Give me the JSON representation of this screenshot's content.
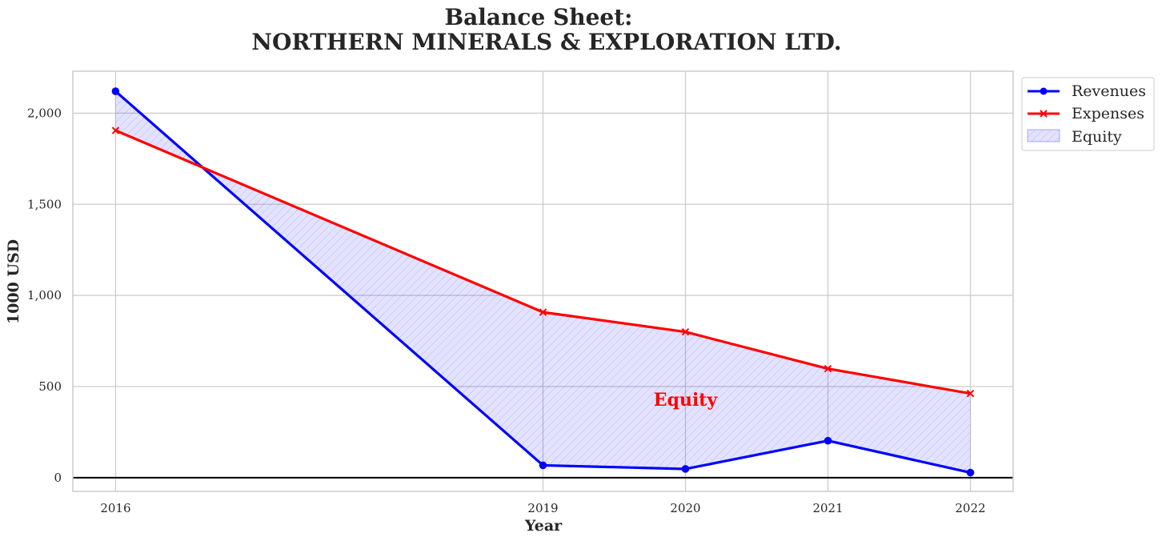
{
  "chart_data": {
    "type": "line",
    "title_lines": [
      "Balance Sheet:",
      "NORTHERN MINERALS & EXPLORATION LTD."
    ],
    "xlabel": "Year",
    "ylabel": "1000 USD",
    "x": [
      2016,
      2019,
      2020,
      2021,
      2022
    ],
    "x_tick_labels": [
      "2016",
      "2019",
      "2020",
      "2021",
      "2022"
    ],
    "xlim": [
      2015.7,
      2022.3
    ],
    "ylim": [
      -75,
      2230
    ],
    "y_ticks": [
      0,
      500,
      1000,
      1500,
      2000
    ],
    "y_tick_labels": [
      "0",
      "500",
      "1,000",
      "1,500",
      "2,000"
    ],
    "grid": true,
    "legend_position": "outside top-right",
    "series": [
      {
        "name": "Revenues",
        "values": [
          2120,
          68,
          48,
          203,
          28
        ],
        "color": "#0000ff",
        "marker": "circle"
      },
      {
        "name": "Expenses",
        "values": [
          1905,
          908,
          800,
          598,
          462
        ],
        "color": "#ff0000",
        "marker": "x"
      }
    ],
    "fill": {
      "name": "Equity",
      "between": [
        "Revenues",
        "Expenses"
      ],
      "color": "#0000ff",
      "hatch": "diagonal"
    },
    "annotations": [
      {
        "text": "Equity",
        "x": 2020,
        "y": 430,
        "color": "#ff0000"
      }
    ]
  }
}
